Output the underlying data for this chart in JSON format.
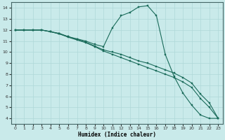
{
  "xlabel": "Humidex (Indice chaleur)",
  "xlim": [
    -0.5,
    23.5
  ],
  "ylim": [
    3.5,
    14.5
  ],
  "xticks": [
    0,
    1,
    2,
    3,
    4,
    5,
    6,
    7,
    8,
    9,
    10,
    11,
    12,
    13,
    14,
    15,
    16,
    17,
    18,
    19,
    20,
    21,
    22,
    23
  ],
  "yticks": [
    4,
    5,
    6,
    7,
    8,
    9,
    10,
    11,
    12,
    13,
    14
  ],
  "bg_color": "#c9eaea",
  "grid_color": "#afd8d8",
  "line_color": "#1a6b5a",
  "line1_x": [
    0,
    1,
    2,
    3,
    4,
    5,
    6,
    7,
    8,
    9,
    10,
    11,
    12,
    13,
    14,
    15,
    16,
    17,
    18,
    19,
    20,
    21,
    22,
    23
  ],
  "line1_y": [
    12.0,
    12.0,
    12.0,
    12.0,
    11.85,
    11.7,
    11.4,
    11.2,
    11.0,
    10.7,
    10.5,
    12.2,
    13.3,
    13.6,
    14.1,
    14.2,
    13.3,
    9.8,
    7.8,
    6.3,
    5.2,
    4.3,
    4.0,
    4.0
  ],
  "line2_x": [
    0,
    1,
    2,
    3,
    4,
    5,
    6,
    7,
    8,
    9,
    10,
    11,
    12,
    13,
    14,
    15,
    16,
    17,
    18,
    19,
    20,
    21,
    22,
    23
  ],
  "line2_y": [
    12.0,
    12.0,
    12.0,
    12.0,
    11.85,
    11.65,
    11.4,
    11.15,
    10.9,
    10.55,
    10.2,
    10.0,
    9.8,
    9.5,
    9.2,
    9.0,
    8.7,
    8.4,
    8.1,
    7.7,
    7.2,
    6.2,
    5.4,
    4.0
  ],
  "line3_x": [
    0,
    1,
    2,
    3,
    4,
    5,
    6,
    7,
    8,
    9,
    10,
    11,
    12,
    13,
    14,
    15,
    16,
    17,
    18,
    19,
    20,
    21,
    22,
    23
  ],
  "line3_y": [
    12.0,
    12.0,
    12.0,
    12.0,
    11.85,
    11.65,
    11.35,
    11.1,
    10.85,
    10.5,
    10.1,
    9.8,
    9.5,
    9.2,
    8.9,
    8.6,
    8.3,
    8.0,
    7.7,
    7.3,
    6.8,
    5.8,
    5.0,
    4.0
  ]
}
